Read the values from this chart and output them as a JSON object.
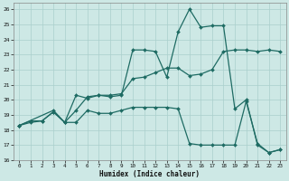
{
  "xlabel": "Humidex (Indice chaleur)",
  "background_color": "#cde8e5",
  "grid_color": "#aacfcc",
  "line_color": "#1e6b63",
  "xlim": [
    -0.5,
    23.5
  ],
  "ylim": [
    16,
    26.4
  ],
  "xticks": [
    0,
    1,
    2,
    3,
    4,
    5,
    6,
    7,
    8,
    9,
    10,
    11,
    12,
    13,
    14,
    15,
    16,
    17,
    18,
    19,
    20,
    21,
    22,
    23
  ],
  "yticks": [
    16,
    17,
    18,
    19,
    20,
    21,
    22,
    23,
    24,
    25,
    26
  ],
  "line1_x": [
    0,
    1,
    2,
    3,
    4,
    5,
    6,
    7,
    8,
    9,
    10,
    11,
    12,
    13,
    14,
    15,
    16,
    17,
    18,
    19,
    20,
    21,
    22,
    23
  ],
  "line1_y": [
    18.3,
    18.5,
    18.6,
    19.2,
    18.5,
    19.3,
    20.2,
    20.3,
    20.3,
    20.4,
    21.4,
    21.5,
    21.8,
    22.1,
    22.1,
    21.6,
    21.7,
    22.0,
    23.2,
    23.3,
    23.3,
    23.2,
    23.3,
    23.2
  ],
  "line2_x": [
    0,
    3,
    4,
    5,
    6,
    7,
    8,
    9,
    10,
    11,
    12,
    13,
    14,
    15,
    16,
    17,
    18,
    19,
    20,
    21,
    22,
    23
  ],
  "line2_y": [
    18.3,
    19.3,
    18.5,
    20.3,
    20.1,
    20.3,
    20.2,
    20.3,
    23.3,
    23.3,
    23.2,
    21.5,
    24.5,
    26.0,
    24.8,
    24.9,
    24.9,
    19.4,
    20.0,
    17.0,
    16.5,
    16.7
  ],
  "line3_x": [
    0,
    1,
    2,
    3,
    4,
    5,
    6,
    7,
    8,
    9,
    10,
    11,
    12,
    13,
    14,
    15,
    16,
    17,
    18,
    19,
    20,
    21,
    22,
    23
  ],
  "line3_y": [
    18.3,
    18.6,
    18.6,
    19.2,
    18.5,
    18.5,
    19.3,
    19.1,
    19.1,
    19.3,
    19.5,
    19.5,
    19.5,
    19.5,
    19.4,
    17.1,
    17.0,
    17.0,
    17.0,
    17.0,
    19.9,
    17.1,
    16.5,
    16.7
  ]
}
